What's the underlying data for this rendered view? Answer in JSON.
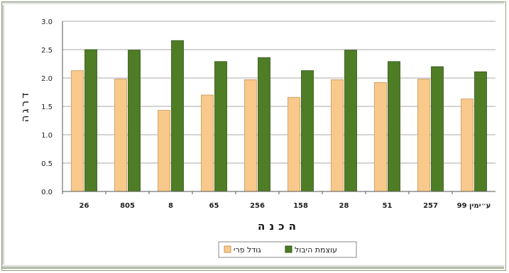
{
  "chart_data": {
    "type": "bar",
    "title": "",
    "xlabel": "הכנה",
    "ylabel": "דרגה",
    "ylim": [
      0,
      3.0
    ],
    "yticks": [
      "0.0",
      "0.5",
      "1.0",
      "1.5",
      "2.0",
      "2.5",
      "3.0"
    ],
    "grid": true,
    "legend_position": "bottom",
    "categories": [
      "26",
      "805",
      "8",
      "65",
      "256",
      "158",
      "28",
      "51",
      "257",
      "ע״ימין 99"
    ],
    "series": [
      {
        "name": "גודל פרי",
        "color": "#f8c98a",
        "values": [
          2.13,
          1.98,
          1.43,
          1.7,
          1.97,
          1.66,
          1.97,
          1.92,
          1.98,
          1.63
        ]
      },
      {
        "name": "עוצמת היבול",
        "color": "#4f7d26",
        "values": [
          2.5,
          2.49,
          2.66,
          2.29,
          2.36,
          2.13,
          2.49,
          2.29,
          2.2,
          2.11
        ]
      }
    ]
  }
}
